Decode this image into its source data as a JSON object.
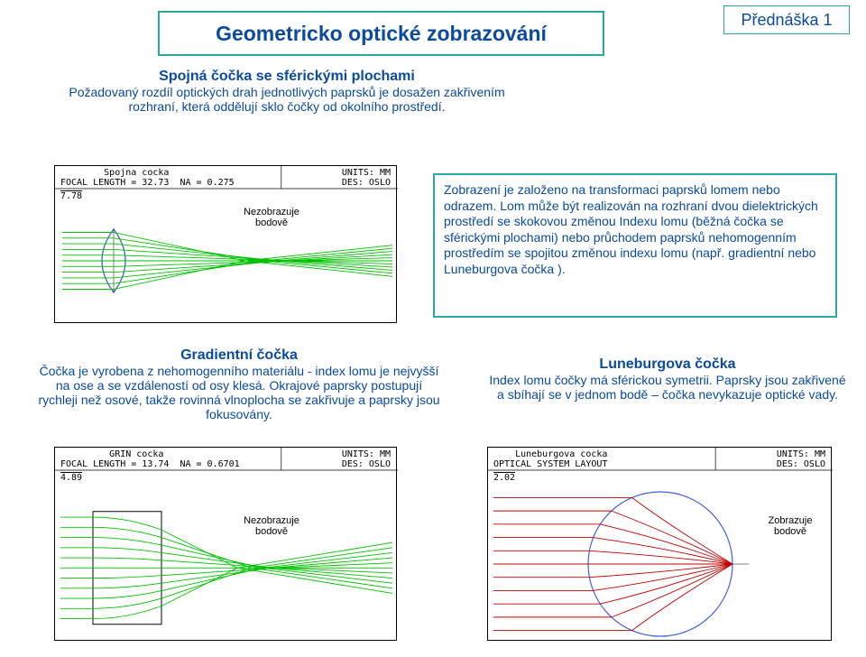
{
  "colors": {
    "title_text": "#0a4aa0",
    "title_border": "#2aa8a0",
    "lecture_text": "#0a4aa0",
    "lecture_border": "#2aa8a0",
    "theory_text": "#0a4aa0",
    "theory_border": "#2aa8a0",
    "diagram_border": "#000000",
    "ray_green": "#00c000",
    "ray_red": "#c00000",
    "lens_blue": "#4060e0"
  },
  "title": {
    "text": "Geometricko optické zobrazování",
    "fontsize": 23
  },
  "lecture": {
    "text": "Přednáška 1",
    "fontsize": 18
  },
  "intro": {
    "heading": "Spojná čočka se sférickými plochami",
    "body": "Požadovaný rozdíl optických drah jednotlivých paprsků je dosažen zakřivením rozhraní, která oddělují sklo čočky od okolního prostředí.",
    "heading_fontsize": 16,
    "body_fontsize": 14
  },
  "theory": {
    "text": "Zobrazení je založeno na transformaci paprsků lomem nebo odrazem. Lom může být realizován na rozhraní dvou dielektrických prostředí se skokovou změnou Indexu lomu (běžná čočka se sférickými plochami) nebo průchodem paprsků nehomogenním prostředím se spojitou změnou indexu lomu (např. gradientní nebo Luneburgova čočka )."
  },
  "gradient": {
    "heading": "Gradientní čočka",
    "body": "Čočka je vyrobena z nehomogenního materiálu - index lomu je nejvyšší na ose a se vzdáleností od osy klesá. Okrajové paprsky postupují rychleji než osové, takže rovinná vlnoplocha se zakřivuje a paprsky jsou fokusovány.",
    "heading_fontsize": 16,
    "body_fontsize": 14
  },
  "luneburg": {
    "heading": "Luneburgova čočka",
    "body": "Index lomu čočky má sférickou symetrii. Paprsky jsou zakřivené a sbíhají se v jednom bodě – čočka nevykazuje optické vady.",
    "heading_fontsize": 16,
    "body_fontsize": 14
  },
  "diagrams": {
    "spherical": {
      "header_l1": "        Spojna cocka",
      "header_l2": "FOCAL LENGTH = 32.73  NA = 0.275",
      "header_r1": "UNITS: MM",
      "header_r2": "DES: OSLO",
      "scale": "7.78",
      "label": "Nezobrazuje\nbodově",
      "ray_color": "#00c000",
      "num_rays": 11,
      "focus_x": 0.7,
      "lens_type": "biconvex"
    },
    "grin": {
      "header_l1": "         GRIN cocka",
      "header_l2": "FOCAL LENGTH = 13.74  NA = 0.6701",
      "header_r1": "UNITS: MM",
      "header_r2": "DES: OSLO",
      "scale": "4.89",
      "label": "Nezobrazuje\nbodově",
      "ray_color": "#00c000",
      "num_rays": 11,
      "focus_x": 0.65,
      "lens_type": "slab"
    },
    "luneburg": {
      "header_l1": "    Luneburgova cocka",
      "header_l2": "OPTICAL SYSTEM LAYOUT",
      "header_r1": "UNITS: MM",
      "header_r2": "DES: OSLO",
      "scale": "2.02",
      "label": "Zobrazuje\nbodově",
      "ray_color": "#c00000",
      "num_rays": 11,
      "lens_type": "sphere"
    }
  }
}
